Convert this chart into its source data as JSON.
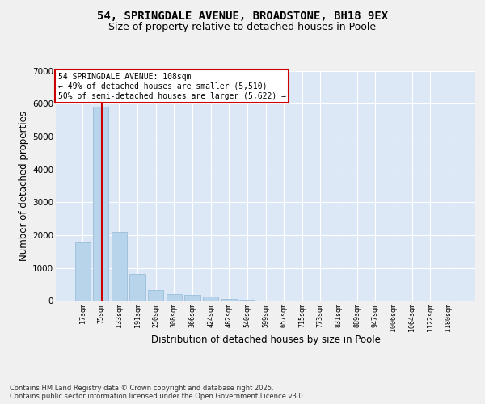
{
  "title_line1": "54, SPRINGDALE AVENUE, BROADSTONE, BH18 9EX",
  "title_line2": "Size of property relative to detached houses in Poole",
  "xlabel": "Distribution of detached houses by size in Poole",
  "ylabel": "Number of detached properties",
  "categories": [
    "17sqm",
    "75sqm",
    "133sqm",
    "191sqm",
    "250sqm",
    "308sqm",
    "366sqm",
    "424sqm",
    "482sqm",
    "540sqm",
    "599sqm",
    "657sqm",
    "715sqm",
    "773sqm",
    "831sqm",
    "889sqm",
    "947sqm",
    "1006sqm",
    "1064sqm",
    "1122sqm",
    "1180sqm"
  ],
  "values": [
    1780,
    5900,
    2100,
    820,
    330,
    210,
    175,
    130,
    65,
    40,
    0,
    0,
    0,
    0,
    0,
    0,
    0,
    0,
    0,
    0,
    0
  ],
  "bar_color": "#b8d4ea",
  "bar_edge_color": "#90b8d8",
  "background_color": "#dce8f5",
  "grid_color": "#ffffff",
  "vline_color": "#cc0000",
  "vline_x": 1.05,
  "annotation_text": "54 SPRINGDALE AVENUE: 108sqm\n← 49% of detached houses are smaller (5,510)\n50% of semi-detached houses are larger (5,622) →",
  "annotation_box_edgecolor": "#cc0000",
  "footer_line1": "Contains HM Land Registry data © Crown copyright and database right 2025.",
  "footer_line2": "Contains public sector information licensed under the Open Government Licence v3.0.",
  "ylim": [
    0,
    7000
  ],
  "yticks": [
    0,
    1000,
    2000,
    3000,
    4000,
    5000,
    6000,
    7000
  ],
  "fig_bg": "#f0f0f0"
}
